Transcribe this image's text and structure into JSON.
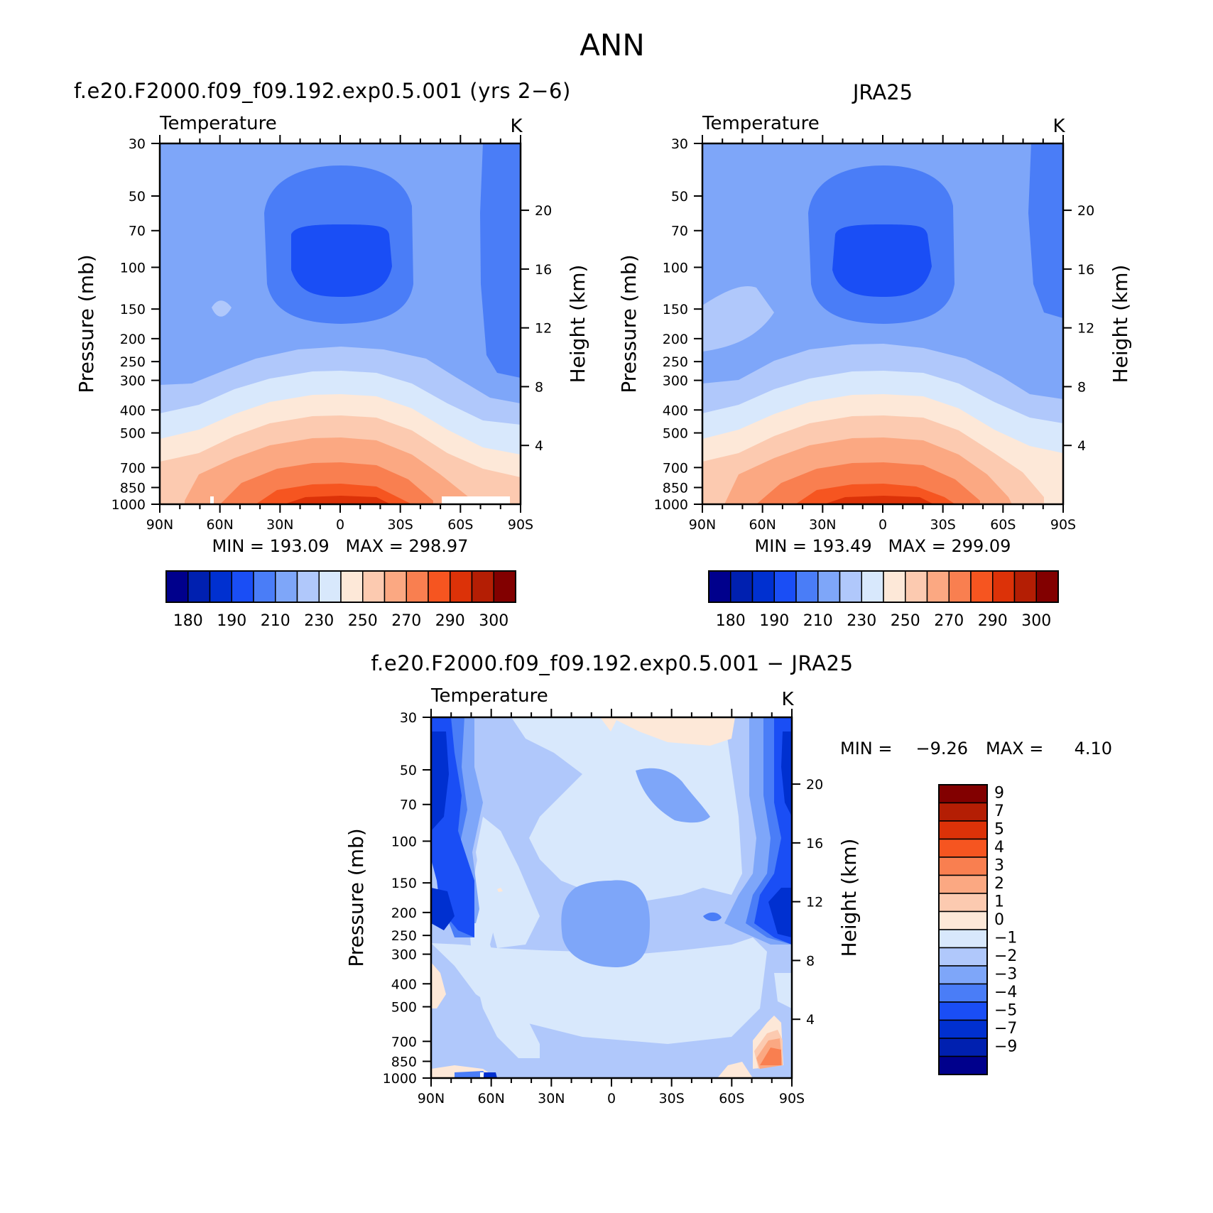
{
  "figure": {
    "title": "ANN"
  },
  "palette": {
    "temperature": [
      "#00008c",
      "#0020b0",
      "#0030d0",
      "#1a4ef5",
      "#4a7df7",
      "#7ea6f9",
      "#b0c8fb",
      "#d8e8fc",
      "#fde8d8",
      "#fccab0",
      "#fba882",
      "#f97f50",
      "#f65520",
      "#dc3208",
      "#b41e04",
      "#820000"
    ],
    "difference": [
      "#00008c",
      "#0020b0",
      "#0030d0",
      "#1a4ef5",
      "#4a7df7",
      "#7ea6f9",
      "#b0c8fb",
      "#d8e8fc",
      "#fde8d8",
      "#fccab0",
      "#fba882",
      "#f97f50",
      "#f65520",
      "#dc3208",
      "#b41e04",
      "#820000"
    ]
  },
  "chart_data": [
    {
      "type": "heatmap",
      "panel": "model",
      "title": "f.e20.F2000.f09_f09.192.exp0.5.001 (yrs 2−6)",
      "variable": "Temperature",
      "units": "K",
      "ylabel": "Pressure (mb)",
      "ylabel_right": "Height (km)",
      "x_ticks": [
        "90N",
        "60N",
        "30N",
        "0",
        "30S",
        "60S",
        "90S"
      ],
      "y_ticks": [
        30,
        50,
        70,
        100,
        150,
        200,
        250,
        300,
        400,
        500,
        700,
        850,
        1000
      ],
      "y_ticks_right": [
        4,
        8,
        12,
        16,
        20
      ],
      "y_scale": "log",
      "min_max_text": "MIN = 193.09   MAX = 298.97",
      "min": 193.09,
      "max": 298.97,
      "levels": [
        175,
        180,
        185,
        190,
        200,
        210,
        220,
        230,
        240,
        250,
        260,
        270,
        280,
        290,
        295,
        300,
        305
      ],
      "colorbar_labels": [
        "180",
        "190",
        "210",
        "230",
        "250",
        "270",
        "290",
        "300"
      ],
      "colorbar_orientation": "horizontal"
    },
    {
      "type": "heatmap",
      "panel": "obs",
      "title": "JRA25",
      "variable": "Temperature",
      "units": "K",
      "ylabel": "Pressure (mb)",
      "ylabel_right": "Height (km)",
      "x_ticks": [
        "90N",
        "60N",
        "30N",
        "0",
        "30S",
        "60S",
        "90S"
      ],
      "y_ticks": [
        30,
        50,
        70,
        100,
        150,
        200,
        250,
        300,
        400,
        500,
        700,
        850,
        1000
      ],
      "y_ticks_right": [
        4,
        8,
        12,
        16,
        20
      ],
      "y_scale": "log",
      "min_max_text": "MIN = 193.49   MAX = 299.09",
      "min": 193.49,
      "max": 299.09,
      "levels": [
        175,
        180,
        185,
        190,
        200,
        210,
        220,
        230,
        240,
        250,
        260,
        270,
        280,
        290,
        295,
        300,
        305
      ],
      "colorbar_labels": [
        "180",
        "190",
        "210",
        "230",
        "250",
        "270",
        "290",
        "300"
      ],
      "colorbar_orientation": "horizontal"
    },
    {
      "type": "heatmap",
      "panel": "diff",
      "title": "f.e20.F2000.f09_f09.192.exp0.5.001 − JRA25",
      "variable": "Temperature",
      "units": "K",
      "ylabel": "Pressure (mb)",
      "ylabel_right": "Height (km)",
      "x_ticks": [
        "90N",
        "60N",
        "30N",
        "0",
        "30S",
        "60S",
        "90S"
      ],
      "y_ticks": [
        30,
        50,
        70,
        100,
        150,
        200,
        250,
        300,
        400,
        500,
        700,
        850,
        1000
      ],
      "y_ticks_right": [
        4,
        8,
        12,
        16,
        20
      ],
      "y_scale": "log",
      "min_label": "MIN =",
      "min_value_text": "−9.26",
      "max_label": "MAX =",
      "max_value_text": "4.10",
      "min": -9.26,
      "max": 4.1,
      "colorbar_labels": [
        "9",
        "7",
        "5",
        "4",
        "3",
        "2",
        "1",
        "0",
        "−1",
        "−2",
        "−3",
        "−4",
        "−5",
        "−7",
        "−9"
      ],
      "colorbar_orientation": "vertical"
    }
  ]
}
